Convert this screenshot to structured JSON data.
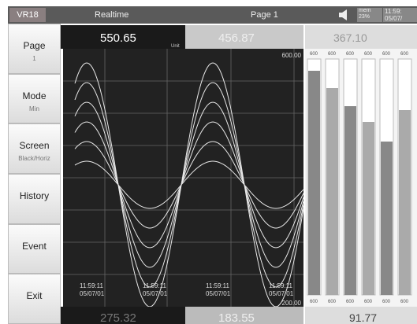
{
  "top_bar": {
    "device": "VR18",
    "mode": "Realtime",
    "page": "Page 1",
    "mem_label": "mem",
    "mem": "23%",
    "time": "11:59:",
    "date": "05/07/"
  },
  "menu": [
    {
      "label": "Page",
      "sub": "1"
    },
    {
      "label": "Mode",
      "sub": "Min"
    },
    {
      "label": "Screen",
      "sub": "Black/Horiz"
    },
    {
      "label": "History"
    },
    {
      "label": "Event"
    },
    {
      "label": "Exit"
    }
  ],
  "trend": {
    "readings_top": [
      "550.65",
      "456.87"
    ],
    "unit_label": "Unit",
    "scale_max": "600.00",
    "scale_min": "200.00",
    "timestamps": [
      {
        "time": "11:59:11",
        "date": "05/07/01"
      },
      {
        "time": "11:59:11",
        "date": "05/07/01"
      },
      {
        "time": "11:59:11",
        "date": "05/07/01"
      },
      {
        "time": "11:59:11",
        "date": "05/07/01"
      }
    ],
    "readings_bottom": [
      "275.32",
      "183.55"
    ]
  },
  "bars": {
    "reading_top": "367.10",
    "reading_bottom": "91.77",
    "scale_top": [
      "600",
      "600",
      "600",
      "600",
      "600",
      "600"
    ],
    "scale_bottom": [
      "600",
      "600",
      "600",
      "600",
      "600",
      "600"
    ]
  }
}
